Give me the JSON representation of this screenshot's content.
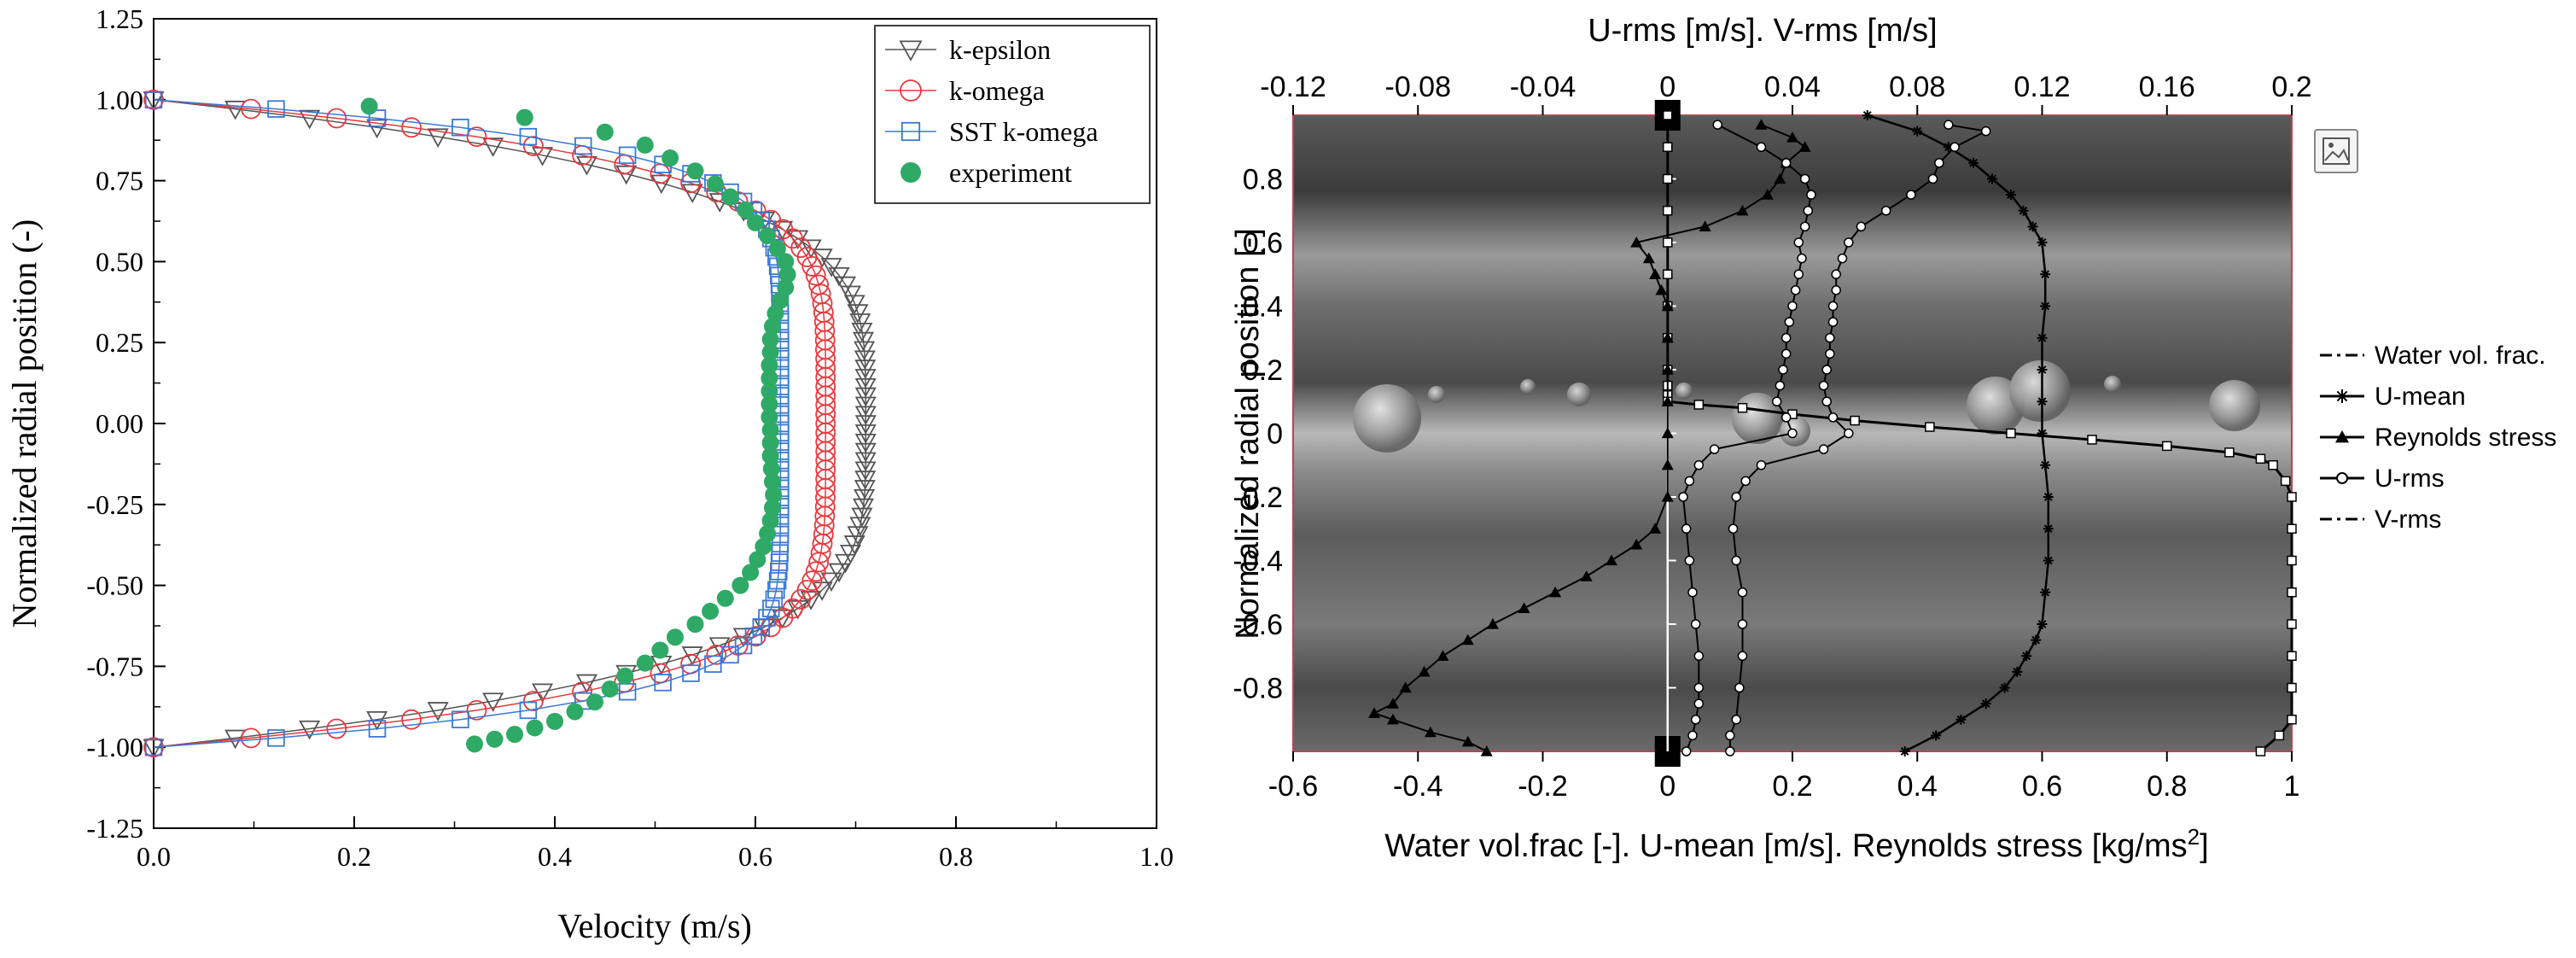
{
  "chart_data": [
    {
      "type": "scatter",
      "xlabel": "Velocity (m/s)",
      "ylabel": "Normalized radial position (-)",
      "xlim": [
        0.0,
        1.0
      ],
      "ylim": [
        -1.25,
        1.25
      ],
      "xticks": [
        "0.0",
        "0.2",
        "0.4",
        "0.6",
        "0.8",
        "1.0"
      ],
      "yticks": [
        "1.25",
        "1.00",
        "0.75",
        "0.50",
        "0.25",
        "0.00",
        "-0.25",
        "-0.50",
        "-0.75",
        "-1.00",
        "-1.25"
      ],
      "legend_position": "top-right",
      "grid": false,
      "series": [
        {
          "name": "k-epsilon",
          "marker": "triangle-down",
          "color": "#555555",
          "umax": 0.71,
          "umin": 0.0,
          "shape": 4.2
        },
        {
          "name": "k-omega",
          "marker": "circle-open",
          "color": "#e8383d",
          "umax": 0.67,
          "umin": 0.0,
          "shape": 5.4
        },
        {
          "name": "SST k-omega",
          "marker": "square-open",
          "color": "#3a78d6",
          "umax": 0.625,
          "umin": 0.0,
          "shape": 7.5
        },
        {
          "name": "experiment",
          "marker": "circle-filled",
          "color": "#2eaa66",
          "x": [
            0.215,
            0.37,
            0.45,
            0.49,
            0.515,
            0.54,
            0.56,
            0.575,
            0.59,
            0.6,
            0.612,
            0.622,
            0.63,
            0.632,
            0.63,
            0.625,
            0.62,
            0.617,
            0.615,
            0.615,
            0.614,
            0.614,
            0.614,
            0.614,
            0.614,
            0.615,
            0.615,
            0.615,
            0.616,
            0.617,
            0.618,
            0.617,
            0.615,
            0.612,
            0.608,
            0.602,
            0.595,
            0.585,
            0.57,
            0.555,
            0.54,
            0.52,
            0.505,
            0.49,
            0.47,
            0.455,
            0.44,
            0.42,
            0.4,
            0.38,
            0.36,
            0.34,
            0.32
          ],
          "y": [
            0.98,
            0.945,
            0.9,
            0.86,
            0.82,
            0.78,
            0.74,
            0.7,
            0.66,
            0.62,
            0.58,
            0.54,
            0.5,
            0.46,
            0.42,
            0.38,
            0.34,
            0.3,
            0.26,
            0.22,
            0.18,
            0.14,
            0.1,
            0.06,
            0.02,
            -0.02,
            -0.06,
            -0.1,
            -0.14,
            -0.18,
            -0.22,
            -0.26,
            -0.3,
            -0.34,
            -0.38,
            -0.42,
            -0.46,
            -0.5,
            -0.54,
            -0.58,
            -0.62,
            -0.66,
            -0.7,
            -0.74,
            -0.78,
            -0.82,
            -0.86,
            -0.89,
            -0.92,
            -0.94,
            -0.96,
            -0.975,
            -0.99
          ]
        }
      ]
    },
    {
      "type": "line",
      "xlabel_bottom": "Water vol.frac [-]. U-mean [m/s]. Reynolds stress [kg/ms",
      "xlabel_bottom_sup": "2",
      "xlabel_bottom_close": "]",
      "xlabel_top": "U-rms [m/s]. V-rms [m/s]",
      "ylabel": "Normalized radial position [-]",
      "xlim_bottom": [
        -0.6,
        1.0
      ],
      "xlim_top": [
        -0.12,
        0.2
      ],
      "ylim": [
        -1.0,
        1.0
      ],
      "xticks_bottom": [
        "-0.6",
        "-0.4",
        "-0.2",
        "0",
        "0.2",
        "0.4",
        "0.6",
        "0.8",
        "1"
      ],
      "xticks_top": [
        "-0.12",
        "-0.08",
        "-0.04",
        "0",
        "0.04",
        "0.08",
        "0.12",
        "0.16",
        "0.2"
      ],
      "yticks": [
        "1",
        "0.8",
        "0.6",
        "0.4",
        "0.2",
        "0",
        "-0.2",
        "-0.4",
        "-0.6",
        "-0.8",
        "-1"
      ],
      "legend_position": "right",
      "background": "photo of bubbly pipe flow",
      "series": [
        {
          "name": "Water vol. frac.",
          "marker": "square-open",
          "style": "dash-dot",
          "axis": "bottom",
          "y": [
            1.0,
            0.9,
            0.8,
            0.7,
            0.6,
            0.5,
            0.4,
            0.3,
            0.2,
            0.15,
            0.12,
            0.1,
            0.09,
            0.08,
            0.06,
            0.04,
            0.02,
            0.0,
            -0.02,
            -0.04,
            -0.06,
            -0.08,
            -0.1,
            -0.15,
            -0.2,
            -0.3,
            -0.4,
            -0.5,
            -0.6,
            -0.7,
            -0.8,
            -0.9,
            -0.95,
            -1.0
          ],
          "x": [
            0.0,
            0.0,
            0.0,
            0.0,
            0.0,
            0.0,
            0.0,
            0.0,
            0.0,
            0.0,
            0.0,
            0.0,
            0.05,
            0.12,
            0.2,
            0.3,
            0.42,
            0.55,
            0.68,
            0.8,
            0.9,
            0.95,
            0.97,
            0.99,
            1.0,
            1.0,
            1.0,
            1.0,
            1.0,
            1.0,
            1.0,
            1.0,
            0.98,
            0.95
          ]
        },
        {
          "name": "U-mean",
          "marker": "star",
          "style": "solid",
          "axis": "bottom",
          "y": [
            1.0,
            0.95,
            0.9,
            0.85,
            0.8,
            0.75,
            0.7,
            0.65,
            0.6,
            0.5,
            0.4,
            0.3,
            0.2,
            0.1,
            0.0,
            -0.1,
            -0.2,
            -0.3,
            -0.4,
            -0.5,
            -0.6,
            -0.65,
            -0.7,
            -0.75,
            -0.8,
            -0.85,
            -0.9,
            -0.95,
            -1.0
          ],
          "x": [
            0.32,
            0.4,
            0.45,
            0.49,
            0.52,
            0.55,
            0.57,
            0.585,
            0.6,
            0.605,
            0.605,
            0.6,
            0.6,
            0.6,
            0.6,
            0.605,
            0.61,
            0.61,
            0.61,
            0.605,
            0.6,
            0.59,
            0.575,
            0.56,
            0.54,
            0.51,
            0.47,
            0.43,
            0.38
          ]
        },
        {
          "name": "Reynolds stress",
          "marker": "triangle-filled",
          "style": "solid",
          "axis": "bottom",
          "y": [
            0.97,
            0.93,
            0.9,
            0.85,
            0.8,
            0.75,
            0.7,
            0.65,
            0.6,
            0.55,
            0.5,
            0.45,
            0.4,
            0.3,
            0.2,
            0.1,
            0.0,
            -0.1,
            -0.2,
            -0.3,
            -0.35,
            -0.4,
            -0.45,
            -0.5,
            -0.55,
            -0.6,
            -0.65,
            -0.7,
            -0.75,
            -0.8,
            -0.85,
            -0.88,
            -0.9,
            -0.94,
            -0.97,
            -1.0
          ],
          "x": [
            0.15,
            0.2,
            0.22,
            0.19,
            0.18,
            0.16,
            0.12,
            0.06,
            -0.05,
            -0.03,
            -0.02,
            -0.01,
            0.0,
            0.0,
            0.0,
            0.0,
            0.0,
            0.0,
            0.0,
            -0.02,
            -0.05,
            -0.09,
            -0.13,
            -0.18,
            -0.23,
            -0.28,
            -0.32,
            -0.36,
            -0.39,
            -0.42,
            -0.44,
            -0.47,
            -0.44,
            -0.38,
            -0.32,
            -0.29
          ]
        },
        {
          "name": "U-rms",
          "marker": "circle-open",
          "style": "solid",
          "axis": "top",
          "y": [
            0.97,
            0.95,
            0.9,
            0.85,
            0.8,
            0.75,
            0.7,
            0.65,
            0.6,
            0.55,
            0.5,
            0.45,
            0.4,
            0.35,
            0.3,
            0.25,
            0.2,
            0.15,
            0.1,
            0.05,
            0.0,
            -0.05,
            -0.1,
            -0.15,
            -0.2,
            -0.3,
            -0.4,
            -0.5,
            -0.6,
            -0.7,
            -0.8,
            -0.9,
            -0.95,
            -1.0
          ],
          "x": [
            0.09,
            0.102,
            0.092,
            0.087,
            0.085,
            0.078,
            0.07,
            0.062,
            0.058,
            0.056,
            0.054,
            0.054,
            0.053,
            0.053,
            0.052,
            0.052,
            0.051,
            0.05,
            0.051,
            0.053,
            0.058,
            0.05,
            0.03,
            0.025,
            0.022,
            0.021,
            0.022,
            0.024,
            0.024,
            0.024,
            0.023,
            0.022,
            0.02,
            0.02
          ]
        },
        {
          "name": "V-rms",
          "marker": "circle-open",
          "style": "dash-dot",
          "axis": "top",
          "y": [
            0.97,
            0.9,
            0.85,
            0.8,
            0.75,
            0.7,
            0.65,
            0.6,
            0.55,
            0.5,
            0.45,
            0.4,
            0.35,
            0.3,
            0.25,
            0.2,
            0.15,
            0.1,
            0.05,
            0.0,
            -0.05,
            -0.1,
            -0.15,
            -0.2,
            -0.3,
            -0.4,
            -0.5,
            -0.6,
            -0.7,
            -0.8,
            -0.85,
            -0.9,
            -0.95,
            -1.0
          ],
          "x": [
            0.016,
            0.03,
            0.038,
            0.044,
            0.046,
            0.045,
            0.044,
            0.042,
            0.043,
            0.042,
            0.041,
            0.04,
            0.039,
            0.038,
            0.038,
            0.037,
            0.036,
            0.035,
            0.038,
            0.04,
            0.015,
            0.01,
            0.007,
            0.005,
            0.006,
            0.007,
            0.008,
            0.009,
            0.01,
            0.01,
            0.01,
            0.009,
            0.008,
            0.006
          ]
        }
      ]
    }
  ]
}
